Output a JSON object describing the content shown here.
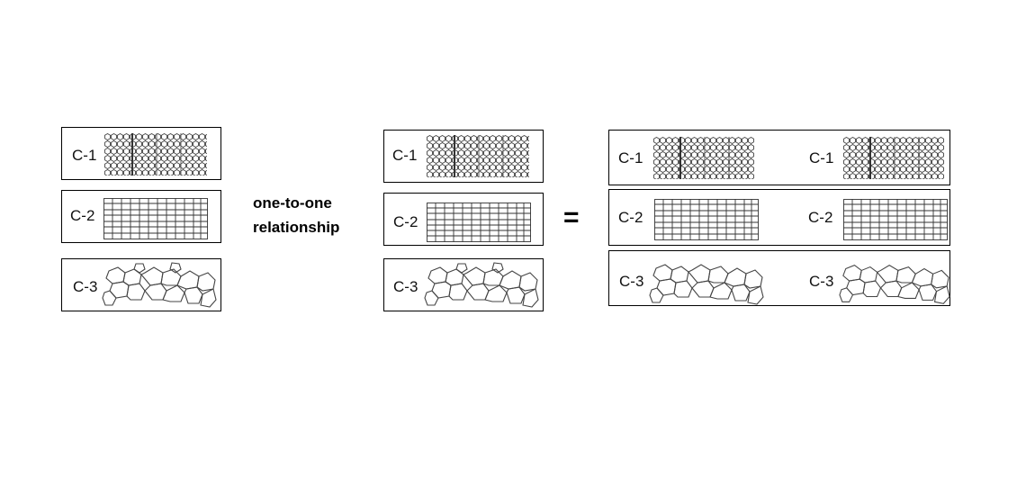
{
  "left_group": {
    "rows": [
      {
        "label": "C-1",
        "pattern": "honeycomb"
      },
      {
        "label": "C-2",
        "pattern": "grid"
      },
      {
        "label": "C-3",
        "pattern": "polygon-network"
      }
    ]
  },
  "relationship": {
    "line1": "one-to-one",
    "line2": "relationship"
  },
  "middle_group": {
    "rows": [
      {
        "label": "C-1",
        "pattern": "honeycomb"
      },
      {
        "label": "C-2",
        "pattern": "grid"
      },
      {
        "label": "C-3",
        "pattern": "polygon-network"
      }
    ]
  },
  "equals_sign": "=",
  "right_group": {
    "rows": [
      {
        "label_a": "C-1",
        "label_b": "C-1",
        "pattern": "honeycomb"
      },
      {
        "label_a": "C-2",
        "label_b": "C-2",
        "pattern": "grid"
      },
      {
        "label_a": "C-3",
        "label_b": "C-3",
        "pattern": "polygon-network"
      }
    ]
  }
}
